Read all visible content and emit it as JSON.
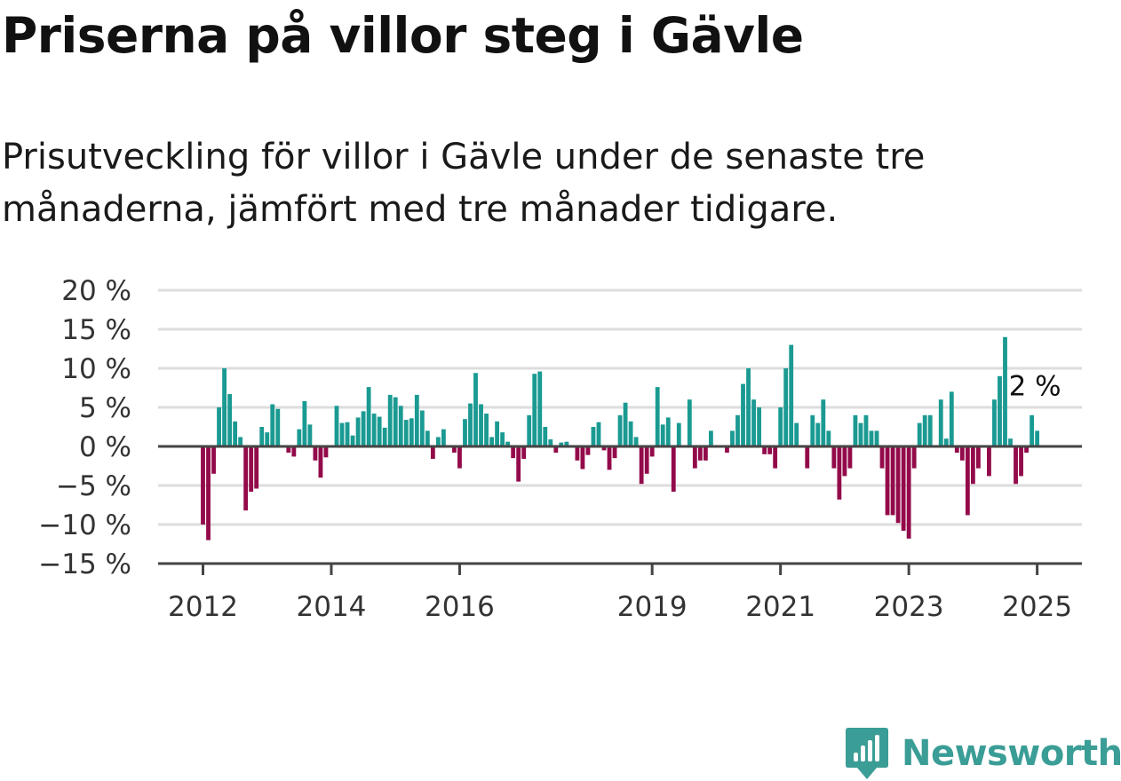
{
  "title": "Priserna på villor steg i Gävle",
  "subtitle": "Prisutveckling för villor i Gävle under de senaste tre månaderna, jämfört med tre månader tidigare.",
  "brand": {
    "name": "Newsworthy",
    "logo_icon": "bar-chart-bubble-icon"
  },
  "colors": {
    "positive": "#1a9a92",
    "negative": "#930a4a",
    "grid": "#dddddd",
    "axis": "#444444",
    "brand": "#3a9d96"
  },
  "chart_data": {
    "type": "bar",
    "x_start": "2012-01",
    "x_frequency": "monthly",
    "xticks": [
      "2012",
      "2014",
      "2016",
      "2019",
      "2021",
      "2023",
      "2025"
    ],
    "yticks": [
      "20 %",
      "15 %",
      "10 %",
      "5 %",
      "0 %",
      "−5 %",
      "−10 %",
      "−15 %"
    ],
    "ylim": [
      -15,
      20
    ],
    "unit": "%",
    "annotation": {
      "text": "2 %"
    },
    "values": [
      -10,
      -12,
      -3.5,
      5,
      10,
      6.7,
      3.2,
      1.2,
      -8.2,
      -5.8,
      -5.4,
      2.5,
      1.8,
      5.4,
      4.8,
      0,
      -0.8,
      -1.3,
      2.2,
      5.8,
      2.8,
      -1.8,
      -4,
      -1.4,
      0,
      5.2,
      3,
      3.1,
      1.4,
      3.7,
      4.5,
      7.6,
      4.2,
      3.8,
      2.4,
      6.6,
      6.3,
      5.2,
      3.4,
      3.6,
      6.6,
      4.6,
      2,
      -1.6,
      1.2,
      2.2,
      0,
      -0.8,
      -2.8,
      3.5,
      5.5,
      9.4,
      5.4,
      4.2,
      1.2,
      3.2,
      1.8,
      0.6,
      -1.5,
      -4.5,
      -1.6,
      4,
      9.3,
      9.6,
      2.5,
      0.9,
      -0.8,
      0.5,
      0.6,
      0,
      -1.8,
      -2.9,
      -1.1,
      2.5,
      3.1,
      -0.5,
      -3,
      -1.5,
      4,
      5.6,
      3.2,
      1.2,
      -4.8,
      -3.5,
      -1.3,
      7.6,
      2.8,
      3.7,
      -5.8,
      3,
      0,
      6,
      -2.8,
      -1.8,
      -1.8,
      2,
      0,
      0,
      -0.8,
      2,
      4,
      8,
      10,
      6,
      5,
      -1,
      -1,
      -2.8,
      5,
      10,
      13,
      3,
      0,
      -2.8,
      4,
      3,
      6,
      2,
      -2.8,
      -6.8,
      -3.8,
      -2.8,
      4,
      3,
      4,
      2,
      2,
      -2.8,
      -8.8,
      -8.8,
      -9.8,
      -10.8,
      -11.8,
      -2.8,
      3,
      4,
      4,
      0,
      6,
      1,
      7,
      -0.8,
      -1.8,
      -8.8,
      -4.8,
      -2.8,
      0,
      -3.8,
      6,
      9,
      14,
      1,
      -4.8,
      -3.8,
      -0.8,
      4,
      2
    ]
  }
}
